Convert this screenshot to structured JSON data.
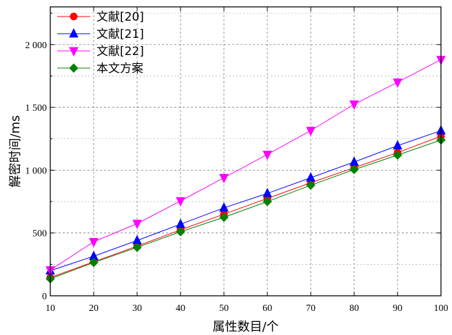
{
  "chart_data": {
    "type": "line",
    "title": "",
    "xlabel": "属性数目/个",
    "ylabel": "解密时间/ms",
    "xlim": [
      10,
      100
    ],
    "ylim": [
      0,
      2300
    ],
    "x": [
      10,
      20,
      30,
      40,
      50,
      60,
      70,
      80,
      90,
      100
    ],
    "x_ticks": [
      10,
      20,
      30,
      40,
      50,
      60,
      70,
      80,
      90,
      100
    ],
    "x_tick_labels": [
      "10",
      "20",
      "30",
      "40",
      "50",
      "60",
      "70",
      "80",
      "90",
      "100"
    ],
    "y_ticks": [
      0,
      500,
      1000,
      1500,
      2000
    ],
    "y_tick_labels": [
      "0",
      "500",
      "1 000",
      "1 500",
      "2 000"
    ],
    "grid": true,
    "legend_position": "top-left",
    "series": [
      {
        "name": "文献[20]",
        "color": "#ff0000",
        "marker": "circle",
        "values": [
          145,
          270,
          395,
          525,
          650,
          775,
          900,
          1020,
          1140,
          1270
        ]
      },
      {
        "name": "文献[21]",
        "color": "#0000ff",
        "marker": "triangle-up",
        "values": [
          200,
          315,
          440,
          570,
          700,
          815,
          940,
          1065,
          1195,
          1315
        ]
      },
      {
        "name": "文献[22]",
        "color": "#ff00ff",
        "marker": "triangle-down",
        "values": [
          205,
          430,
          575,
          755,
          940,
          1125,
          1315,
          1525,
          1700,
          1880
        ]
      },
      {
        "name": "本文方案",
        "color": "#008000",
        "marker": "diamond",
        "values": [
          135,
          265,
          385,
          510,
          625,
          750,
          880,
          1005,
          1120,
          1240
        ]
      }
    ]
  }
}
